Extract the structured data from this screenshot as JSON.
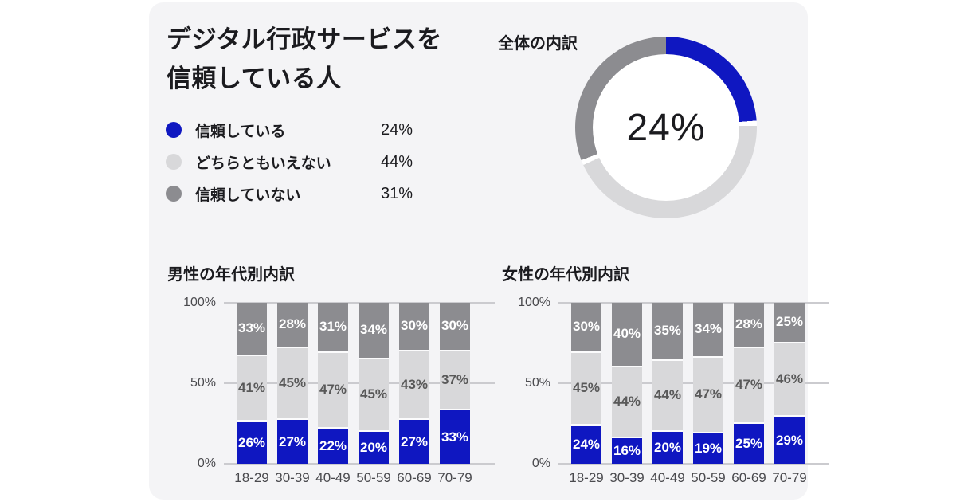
{
  "colors": {
    "card_bg": "#f4f4f6",
    "text_dark": "#1b1b1f",
    "axis_text": "#4a4a4e",
    "gridline": "#cbcbcf",
    "series_colors": [
      "#0f17c1",
      "#d8d8da",
      "#8c8c90"
    ],
    "series_label_colors": [
      "#ffffff",
      "#595959",
      "#ffffff"
    ],
    "donut_hole": "#ffffff",
    "segment_gap": "#fbfbfc"
  },
  "header": {
    "title_line1": "デジタル行政サービスを",
    "title_line2": "信頼している人"
  },
  "legend": {
    "items": [
      {
        "label": "信頼している",
        "value": "24%"
      },
      {
        "label": "どちらともいえない",
        "value": "44%"
      },
      {
        "label": "信頼していない",
        "value": "31%"
      }
    ]
  },
  "donut_section": {
    "title": "全体の内訳",
    "center_label": "24%"
  },
  "chart_data": [
    {
      "type": "pie",
      "subtype": "donut",
      "title": "全体の内訳",
      "center_label": "24%",
      "slices": [
        {
          "label": "信頼している",
          "value": 24
        },
        {
          "label": "どちらともいえない",
          "value": 44
        },
        {
          "label": "信頼していない",
          "value": 31
        }
      ]
    },
    {
      "type": "bar",
      "stacked": true,
      "title": "男性の年代別内訳",
      "categories": [
        "18-29",
        "30-39",
        "40-49",
        "50-59",
        "60-69",
        "70-79"
      ],
      "series": [
        {
          "name": "信頼している",
          "values": [
            26,
            27,
            22,
            20,
            27,
            33
          ]
        },
        {
          "name": "どちらともいえない",
          "values": [
            41,
            45,
            47,
            45,
            43,
            37
          ]
        },
        {
          "name": "信頼していない",
          "values": [
            33,
            28,
            31,
            34,
            30,
            30
          ]
        }
      ],
      "ylim": [
        0,
        100
      ],
      "yticks": [
        {
          "label": "0%",
          "pct": 0
        },
        {
          "label": "50%",
          "pct": 50
        },
        {
          "label": "100%",
          "pct": 100
        }
      ],
      "grid": true,
      "value_suffix": "%"
    },
    {
      "type": "bar",
      "stacked": true,
      "title": "女性の年代別内訳",
      "categories": [
        "18-29",
        "30-39",
        "40-49",
        "50-59",
        "60-69",
        "70-79"
      ],
      "series": [
        {
          "name": "信頼している",
          "values": [
            24,
            16,
            20,
            19,
            25,
            29
          ]
        },
        {
          "name": "どちらともいえない",
          "values": [
            45,
            44,
            44,
            47,
            47,
            46
          ]
        },
        {
          "name": "信頼していない",
          "values": [
            30,
            40,
            35,
            34,
            28,
            25
          ]
        }
      ],
      "ylim": [
        0,
        100
      ],
      "yticks": [
        {
          "label": "0%",
          "pct": 0
        },
        {
          "label": "50%",
          "pct": 50
        },
        {
          "label": "100%",
          "pct": 100
        }
      ],
      "grid": true,
      "value_suffix": "%"
    }
  ]
}
